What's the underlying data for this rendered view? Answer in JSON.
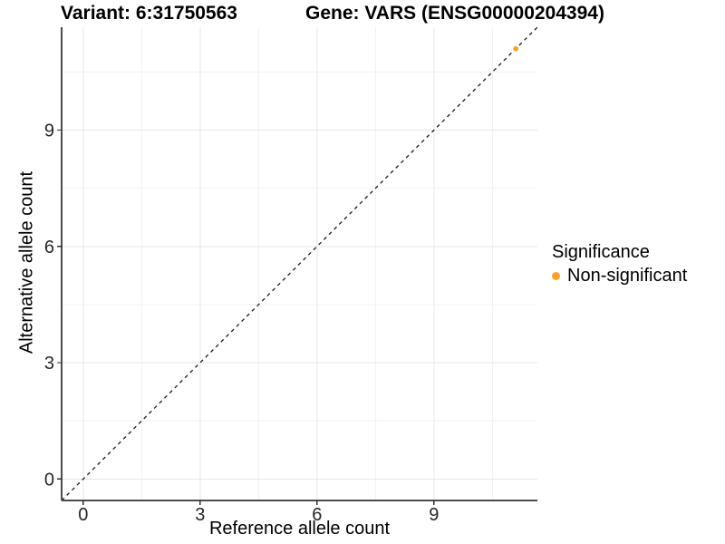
{
  "chart_data": {
    "type": "scatter",
    "title_left": "Variant: 6:31750563",
    "title_right": "Gene: VARS (ENSG00000204394)",
    "xlabel": "Reference allele count",
    "ylabel": "Alternative allele count",
    "xlim": [
      -0.555,
      11.655
    ],
    "ylim": [
      -0.555,
      11.655
    ],
    "x_major_ticks": [
      0,
      3,
      6,
      9
    ],
    "y_major_ticks": [
      0,
      3,
      6,
      9
    ],
    "x_minor_ticks": [
      1.5,
      4.5,
      7.5,
      10.5
    ],
    "y_minor_ticks": [
      1.5,
      4.5,
      7.5,
      10.5
    ],
    "grid": {
      "show_major": true,
      "show_minor": true,
      "major_color": "#E7E7E7",
      "minor_color": "#F2F2F2"
    },
    "identity_line": {
      "from": [
        -0.555,
        -0.555
      ],
      "to": [
        11.655,
        11.655
      ],
      "style": "dashed",
      "color": "#1A1A1A"
    },
    "series": [
      {
        "name": "Non-significant",
        "color": "#F8A02C",
        "point_radius": 2.9,
        "points": [
          [
            11.1,
            11.1
          ]
        ]
      }
    ],
    "legend": {
      "title": "Significance",
      "position": "right",
      "entries": [
        {
          "label": "Non-significant",
          "color": "#F8A02C"
        }
      ]
    },
    "axis_color": "#4D4D4D",
    "tick_color": "#333333",
    "tick_label_color": "#262626"
  }
}
